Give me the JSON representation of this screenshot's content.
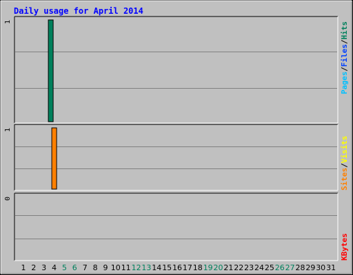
{
  "title": "Daily usage for April 2014",
  "colors": {
    "background": "#c0c0c0",
    "plot_bg": "#c0c0c0",
    "title": "#0000ff",
    "axis_tick": "#000000",
    "weekend_day": "#00805c",
    "hits": "#00805c",
    "files": "#0040ff",
    "pages": "#00c0ff",
    "visits": "#ffff00",
    "sites": "#ff8000",
    "kbytes": "#ff0000"
  },
  "chart_data": [
    {
      "type": "bar",
      "panel": "hits-files-pages",
      "x": [
        1,
        2,
        3,
        4,
        5,
        6,
        7,
        8,
        9,
        10,
        11,
        12,
        13,
        14,
        15,
        16,
        17,
        18,
        19,
        20,
        21,
        22,
        23,
        24,
        25,
        26,
        27,
        28,
        29,
        30,
        31
      ],
      "weekend_days": [
        5,
        6,
        12,
        13,
        19,
        20,
        26,
        27
      ],
      "series": [
        {
          "name": "Hits",
          "day": 4,
          "value": 1
        },
        {
          "name": "Files",
          "day": 4,
          "value": 0
        },
        {
          "name": "Pages",
          "day": 4,
          "value": 0
        }
      ],
      "legend": [
        "Pages",
        "/",
        "Files",
        "/",
        "Hits"
      ],
      "ylim": [
        0,
        1
      ],
      "y_tick_label": "1",
      "grid": true
    },
    {
      "type": "bar",
      "panel": "sites-visits",
      "series": [
        {
          "name": "Visits",
          "day": 4,
          "value": 0
        },
        {
          "name": "Sites",
          "day": 4,
          "value": 1
        }
      ],
      "legend": [
        "Sites",
        "/",
        "Visits"
      ],
      "ylim": [
        0,
        1
      ],
      "y_tick_label": "1",
      "grid": true
    },
    {
      "type": "bar",
      "panel": "kbytes",
      "series": [
        {
          "name": "KBytes",
          "day": 4,
          "value": 0
        }
      ],
      "legend": [
        "KBytes"
      ],
      "ylim": [
        0,
        1
      ],
      "y_tick_label": "0",
      "grid": true
    }
  ]
}
